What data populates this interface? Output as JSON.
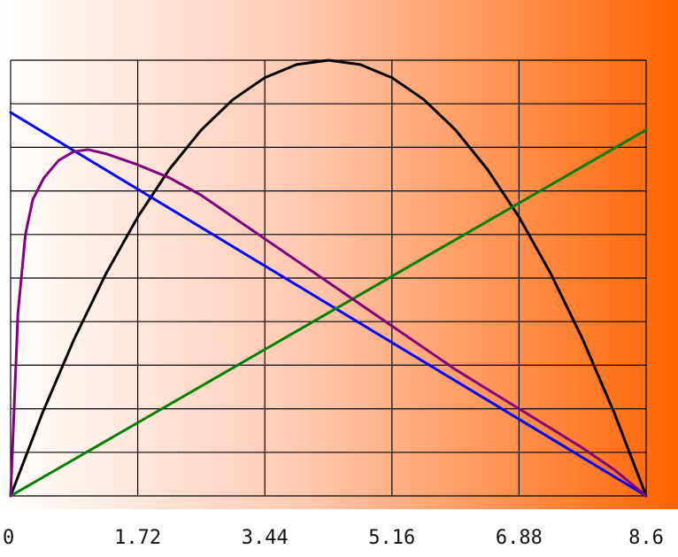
{
  "chart_data": {
    "type": "line",
    "title": "",
    "xlabel": "",
    "ylabel": "",
    "xlim": [
      0,
      8.6
    ],
    "ylim": [
      0,
      1
    ],
    "grid": true,
    "legend": "none",
    "x_ticks": [
      "0",
      "1.72",
      "3.44",
      "5.16",
      "6.88",
      "8.6"
    ],
    "x_tick_values": [
      0,
      1.72,
      3.44,
      5.16,
      6.88,
      8.6
    ],
    "y_grid_lines": 10,
    "background_gradient": [
      "#ffffff",
      "#ff6400"
    ],
    "series": [
      {
        "color": "#000000",
        "x": [
          0,
          0.43,
          0.86,
          1.29,
          1.72,
          2.15,
          2.58,
          3.01,
          3.44,
          3.87,
          4.3,
          4.73,
          5.16,
          5.59,
          6.02,
          6.45,
          6.88,
          7.31,
          7.74,
          8.17,
          8.6
        ],
        "y": [
          0,
          0.19,
          0.36,
          0.51,
          0.64,
          0.75,
          0.84,
          0.91,
          0.96,
          0.99,
          1.0,
          0.99,
          0.96,
          0.91,
          0.84,
          0.75,
          0.64,
          0.51,
          0.36,
          0.19,
          0
        ]
      },
      {
        "color": "#0000ff",
        "x": [
          0,
          8.6
        ],
        "y": [
          0.88,
          0
        ]
      },
      {
        "color": "#008000",
        "x": [
          0,
          8.6
        ],
        "y": [
          0,
          0.84
        ]
      },
      {
        "color": "#800080",
        "x": [
          0,
          0.1,
          0.2,
          0.3,
          0.45,
          0.65,
          0.85,
          1.05,
          1.3,
          1.72,
          2.15,
          2.58,
          3.01,
          3.44,
          3.87,
          4.3,
          4.73,
          5.16,
          5.59,
          6.02,
          6.45,
          6.88,
          7.31,
          7.74,
          8.17,
          8.6
        ],
        "y": [
          0,
          0.42,
          0.6,
          0.68,
          0.73,
          0.77,
          0.79,
          0.795,
          0.785,
          0.76,
          0.73,
          0.69,
          0.64,
          0.59,
          0.54,
          0.49,
          0.44,
          0.39,
          0.34,
          0.29,
          0.245,
          0.2,
          0.155,
          0.11,
          0.06,
          0
        ]
      }
    ]
  }
}
